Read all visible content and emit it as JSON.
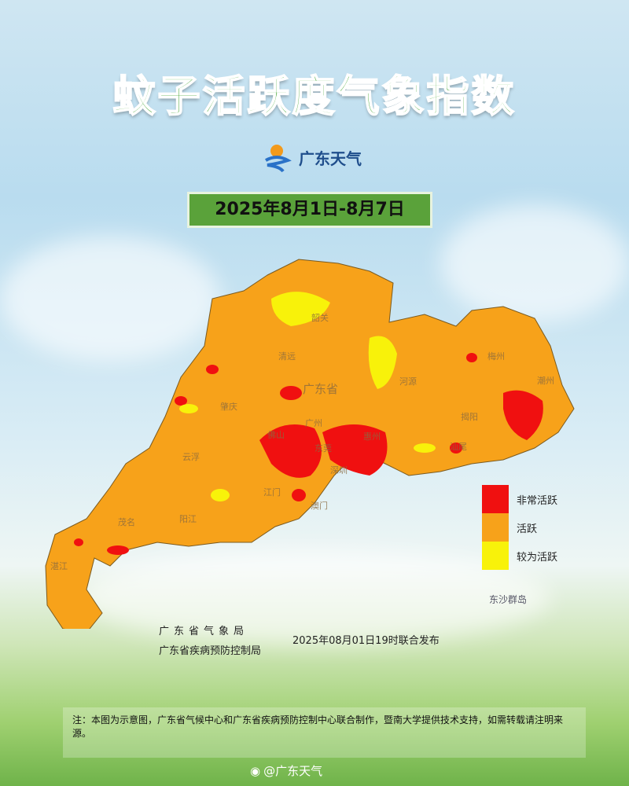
{
  "title": "蚊子活跃度气象指数",
  "logo_text": "广东天气",
  "date_range": "2025年8月1日-8月7日",
  "map": {
    "cities": [
      "韶关",
      "清远",
      "梅州",
      "河源",
      "潮州",
      "广东省",
      "肇庆",
      "揭阳",
      "广州",
      "佛山",
      "东莞",
      "惠州",
      "深圳",
      "汕尾",
      "云浮",
      "江门",
      "澳门",
      "阳江",
      "茂名",
      "湛江"
    ],
    "islands_label": "东沙群岛"
  },
  "legend": [
    {
      "label": "非常活跃",
      "color": "#f01010"
    },
    {
      "label": "活跃",
      "color": "#f7a21a"
    },
    {
      "label": "较为活跃",
      "color": "#f8f20a"
    }
  ],
  "footer": {
    "agency1": "广东省气象局",
    "agency2": "广东省疾病预防控制局",
    "release": "2025年08月01日19时联合发布",
    "note": "注：本图为示意图，广东省气候中心和广东省疾病预防控制中心联合制作，暨南大学提供技术支持，如需转载请注明来源。",
    "weibo": "@广东天气"
  }
}
